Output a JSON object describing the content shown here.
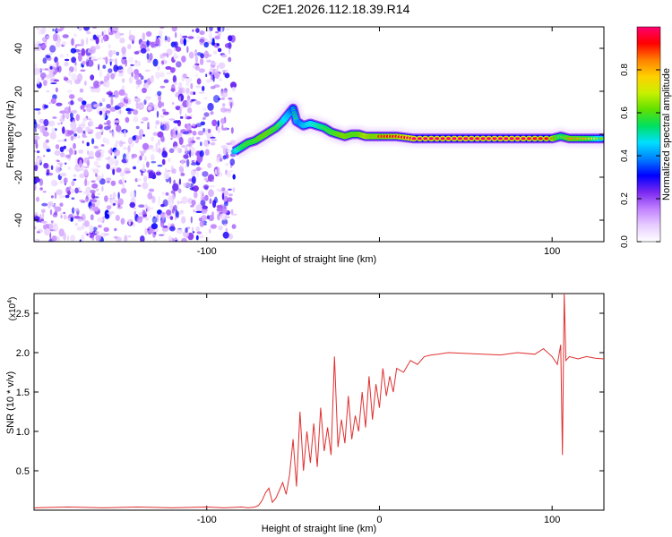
{
  "title": "C2E1.2026.112.18.39.R14",
  "chart_data": [
    {
      "type": "heatmap",
      "name": "spectrogram",
      "xlabel": "Height of straight line (km)",
      "ylabel": "Frequency (Hz)",
      "xlim": [
        -200,
        130
      ],
      "ylim": [
        -50,
        50
      ],
      "xticks": [
        -100,
        0,
        100
      ],
      "xtick_labels": [
        "-100",
        "",
        "100"
      ],
      "yticks": [
        -40,
        -20,
        0,
        20,
        40
      ],
      "ytick_labels": [
        "-40",
        "-20",
        "0",
        "20",
        "40"
      ],
      "noise_region_x": [
        -200,
        -84
      ],
      "ridge": {
        "x": [
          -84,
          -80,
          -76,
          -72,
          -68,
          -64,
          -60,
          -56,
          -54,
          -52,
          -50,
          -48,
          -46,
          -44,
          -40,
          -36,
          -32,
          -28,
          -24,
          -20,
          -16,
          -12,
          -8,
          -4,
          0,
          10,
          20,
          40,
          60,
          80,
          100,
          105,
          110,
          120,
          130
        ],
        "y": [
          -8,
          -6,
          -4,
          -3,
          -1,
          1,
          3,
          6,
          8,
          10,
          12,
          6,
          5,
          4,
          5,
          4,
          3,
          1,
          0,
          -1,
          0,
          0,
          -1,
          -1,
          -1,
          -1,
          -2,
          -2,
          -2,
          -2,
          -2,
          -1,
          -2,
          -2,
          -2
        ],
        "amplitude": [
          0.6,
          0.75,
          0.8,
          0.8,
          0.85,
          0.85,
          0.8,
          0.7,
          0.65,
          0.6,
          0.5,
          0.6,
          0.55,
          0.6,
          0.65,
          0.7,
          0.75,
          0.8,
          0.85,
          0.9,
          0.85,
          0.85,
          0.95,
          0.9,
          0.9,
          0.95,
          1.0,
          1.0,
          1.0,
          1.0,
          0.95,
          0.75,
          0.85,
          0.8,
          0.6
        ]
      },
      "colorbar": {
        "label": "Normalized spectral amplitude",
        "range": [
          0,
          1
        ],
        "ticks": [
          0.0,
          0.2,
          0.4,
          0.6,
          0.8
        ],
        "tick_labels": [
          "0.0",
          "0.2",
          "0.4",
          "0.6",
          "0.8"
        ],
        "colors": [
          "#ffffff",
          "#e6ccff",
          "#c080ff",
          "#7a28f0",
          "#0000ff",
          "#0080ff",
          "#00e0ff",
          "#00e060",
          "#60e000",
          "#c8f000",
          "#ffd000",
          "#ff8000",
          "#ff0000",
          "#ff0070"
        ]
      }
    },
    {
      "type": "line",
      "name": "snr",
      "xlabel": "Height of straight line (km)",
      "ylabel": "SNR (10 * v/v)",
      "scale_label": "(x10",
      "scale_exponent": "4",
      "xlim": [
        -200,
        130
      ],
      "ylim": [
        0,
        2.75
      ],
      "xticks": [
        -100,
        0,
        100
      ],
      "xtick_labels": [
        "-100",
        "0",
        "100"
      ],
      "yticks": [
        0.5,
        1.0,
        1.5,
        2.0,
        2.5
      ],
      "ytick_labels": [
        "0.5",
        "1.0",
        "1.5",
        "2.0",
        "2.5"
      ],
      "color": "#e03030",
      "series": [
        {
          "name": "SNR",
          "x": [
            -200,
            -180,
            -160,
            -140,
            -120,
            -100,
            -90,
            -80,
            -76,
            -72,
            -70,
            -68,
            -66,
            -64,
            -62,
            -60,
            -58,
            -56,
            -54,
            -52,
            -50,
            -48,
            -46,
            -44,
            -42,
            -40,
            -38,
            -36,
            -34,
            -32,
            -30,
            -28,
            -26,
            -24,
            -22,
            -20,
            -18,
            -16,
            -14,
            -12,
            -10,
            -8,
            -6,
            -4,
            -2,
            0,
            2,
            4,
            6,
            8,
            10,
            14,
            18,
            22,
            26,
            30,
            34,
            40,
            50,
            60,
            70,
            80,
            90,
            95,
            100,
            103,
            105,
            106,
            107,
            108,
            110,
            115,
            120,
            125,
            130
          ],
          "y": [
            0.03,
            0.04,
            0.03,
            0.04,
            0.03,
            0.04,
            0.03,
            0.04,
            0.03,
            0.04,
            0.06,
            0.12,
            0.22,
            0.28,
            0.1,
            0.15,
            0.25,
            0.35,
            0.2,
            0.45,
            0.9,
            0.3,
            1.25,
            0.5,
            1.0,
            0.6,
            1.1,
            0.55,
            1.3,
            0.75,
            1.05,
            0.7,
            1.95,
            0.8,
            1.15,
            0.85,
            1.45,
            0.9,
            1.2,
            1.0,
            1.5,
            1.05,
            1.7,
            1.15,
            1.6,
            1.3,
            1.8,
            1.45,
            1.7,
            1.5,
            1.8,
            1.75,
            1.9,
            1.85,
            1.95,
            1.97,
            1.98,
            2.0,
            1.99,
            1.98,
            1.97,
            2.0,
            1.98,
            2.05,
            1.95,
            1.85,
            2.1,
            0.7,
            2.75,
            1.9,
            1.95,
            1.92,
            1.95,
            1.93,
            1.92
          ]
        }
      ]
    }
  ]
}
